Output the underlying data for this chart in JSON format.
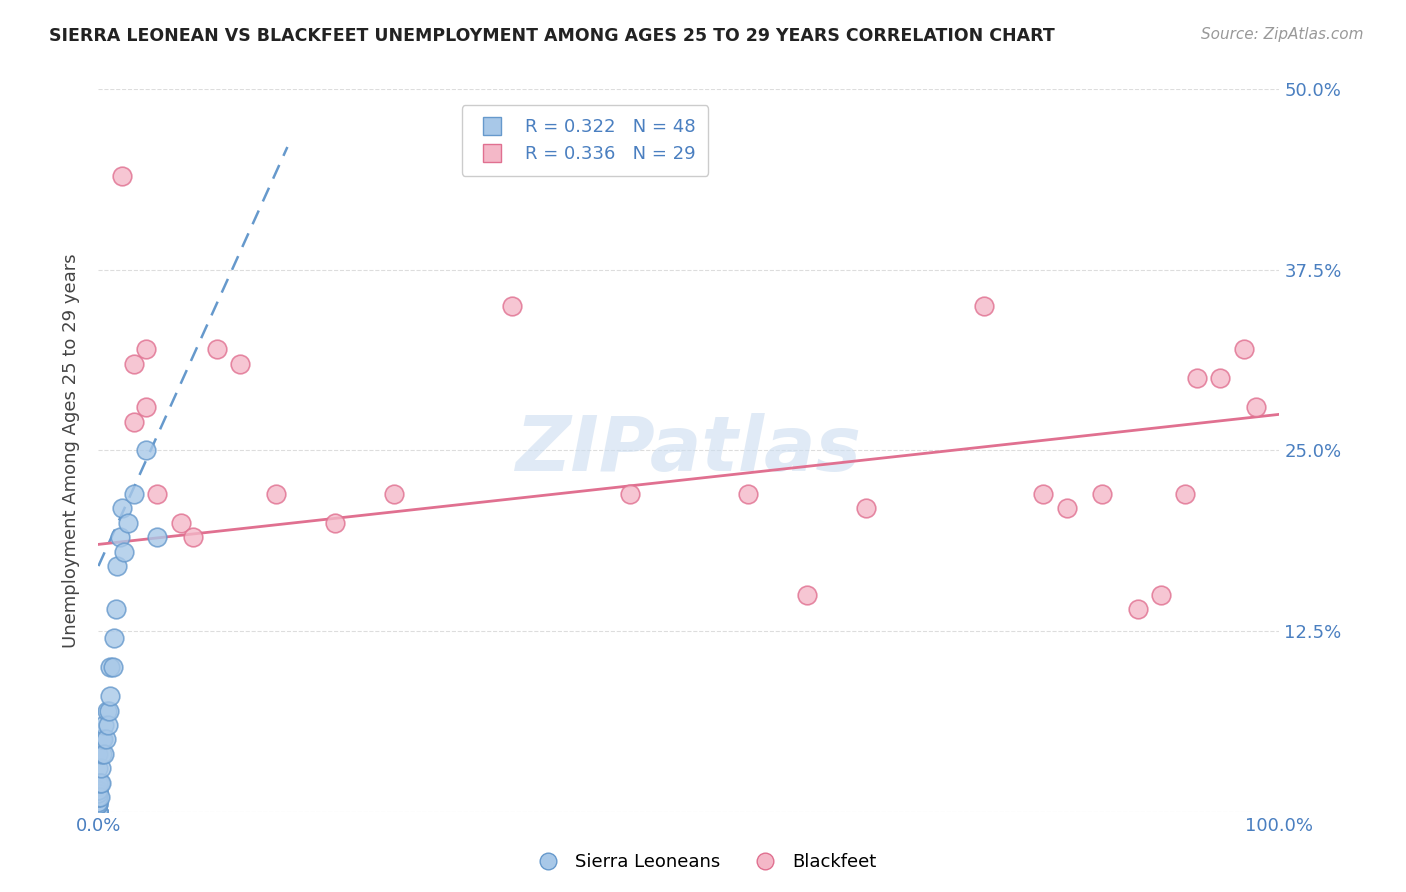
{
  "title": "SIERRA LEONEAN VS BLACKFEET UNEMPLOYMENT AMONG AGES 25 TO 29 YEARS CORRELATION CHART",
  "source": "Source: ZipAtlas.com",
  "ylabel": "Unemployment Among Ages 25 to 29 years",
  "x_min": 0.0,
  "x_max": 1.0,
  "y_min": 0.0,
  "y_max": 0.5,
  "ytick_positions": [
    0.0,
    0.125,
    0.25,
    0.375,
    0.5
  ],
  "ytick_labels_right": [
    "",
    "12.5%",
    "25.0%",
    "37.5%",
    "50.0%"
  ],
  "xtick_positions": [
    0.0,
    0.1,
    0.2,
    0.3,
    0.4,
    0.5,
    0.6,
    0.7,
    0.8,
    0.9,
    1.0
  ],
  "blue_color": "#a8c8e8",
  "blue_edge_color": "#6699cc",
  "pink_color": "#f4b8c8",
  "pink_edge_color": "#e07090",
  "trend_blue_color": "#6699cc",
  "trend_pink_color": "#e07090",
  "legend_R1": "R = 0.322",
  "legend_N1": "N = 48",
  "legend_R2": "R = 0.336",
  "legend_N2": "N = 29",
  "label1": "Sierra Leoneans",
  "label2": "Blackfeet",
  "watermark": "ZIPatlas",
  "watermark_color": "#ccddf0",
  "axis_label_color": "#4a7fc0",
  "grid_color": "#dddddd",
  "sierra_x": [
    0.0,
    0.0,
    0.0,
    0.0,
    0.0,
    0.0,
    0.0,
    0.0,
    0.0,
    0.0,
    0.0,
    0.0,
    0.0,
    0.0,
    0.0,
    0.0,
    0.0,
    0.0,
    0.0,
    0.0,
    0.0,
    0.0,
    0.001,
    0.001,
    0.002,
    0.002,
    0.003,
    0.003,
    0.004,
    0.005,
    0.005,
    0.006,
    0.007,
    0.008,
    0.009,
    0.01,
    0.01,
    0.012,
    0.013,
    0.015,
    0.016,
    0.018,
    0.02,
    0.022,
    0.025,
    0.03,
    0.04,
    0.05
  ],
  "sierra_y": [
    0.0,
    0.0,
    0.0,
    0.0,
    0.0,
    0.0,
    0.0,
    0.0,
    0.0,
    0.0,
    0.0,
    0.005,
    0.005,
    0.007,
    0.01,
    0.01,
    0.013,
    0.015,
    0.015,
    0.02,
    0.03,
    0.04,
    0.01,
    0.02,
    0.02,
    0.03,
    0.04,
    0.05,
    0.05,
    0.04,
    0.06,
    0.05,
    0.07,
    0.06,
    0.07,
    0.08,
    0.1,
    0.1,
    0.12,
    0.14,
    0.17,
    0.19,
    0.21,
    0.18,
    0.2,
    0.22,
    0.25,
    0.19
  ],
  "blackfeet_x": [
    0.02,
    0.03,
    0.03,
    0.04,
    0.04,
    0.05,
    0.07,
    0.08,
    0.1,
    0.12,
    0.15,
    0.2,
    0.25,
    0.35,
    0.45,
    0.55,
    0.6,
    0.65,
    0.75,
    0.8,
    0.82,
    0.85,
    0.88,
    0.9,
    0.92,
    0.93,
    0.95,
    0.97,
    0.98
  ],
  "blackfeet_y": [
    0.44,
    0.31,
    0.27,
    0.32,
    0.28,
    0.22,
    0.2,
    0.19,
    0.32,
    0.31,
    0.22,
    0.2,
    0.22,
    0.35,
    0.22,
    0.22,
    0.15,
    0.21,
    0.35,
    0.22,
    0.21,
    0.22,
    0.14,
    0.15,
    0.22,
    0.3,
    0.3,
    0.32,
    0.28
  ],
  "blue_trend_x": [
    0.0,
    0.16
  ],
  "blue_trend_y_start": 0.17,
  "blue_trend_y_end": 0.46,
  "pink_trend_x": [
    0.0,
    1.0
  ],
  "pink_trend_y_start": 0.185,
  "pink_trend_y_end": 0.275
}
